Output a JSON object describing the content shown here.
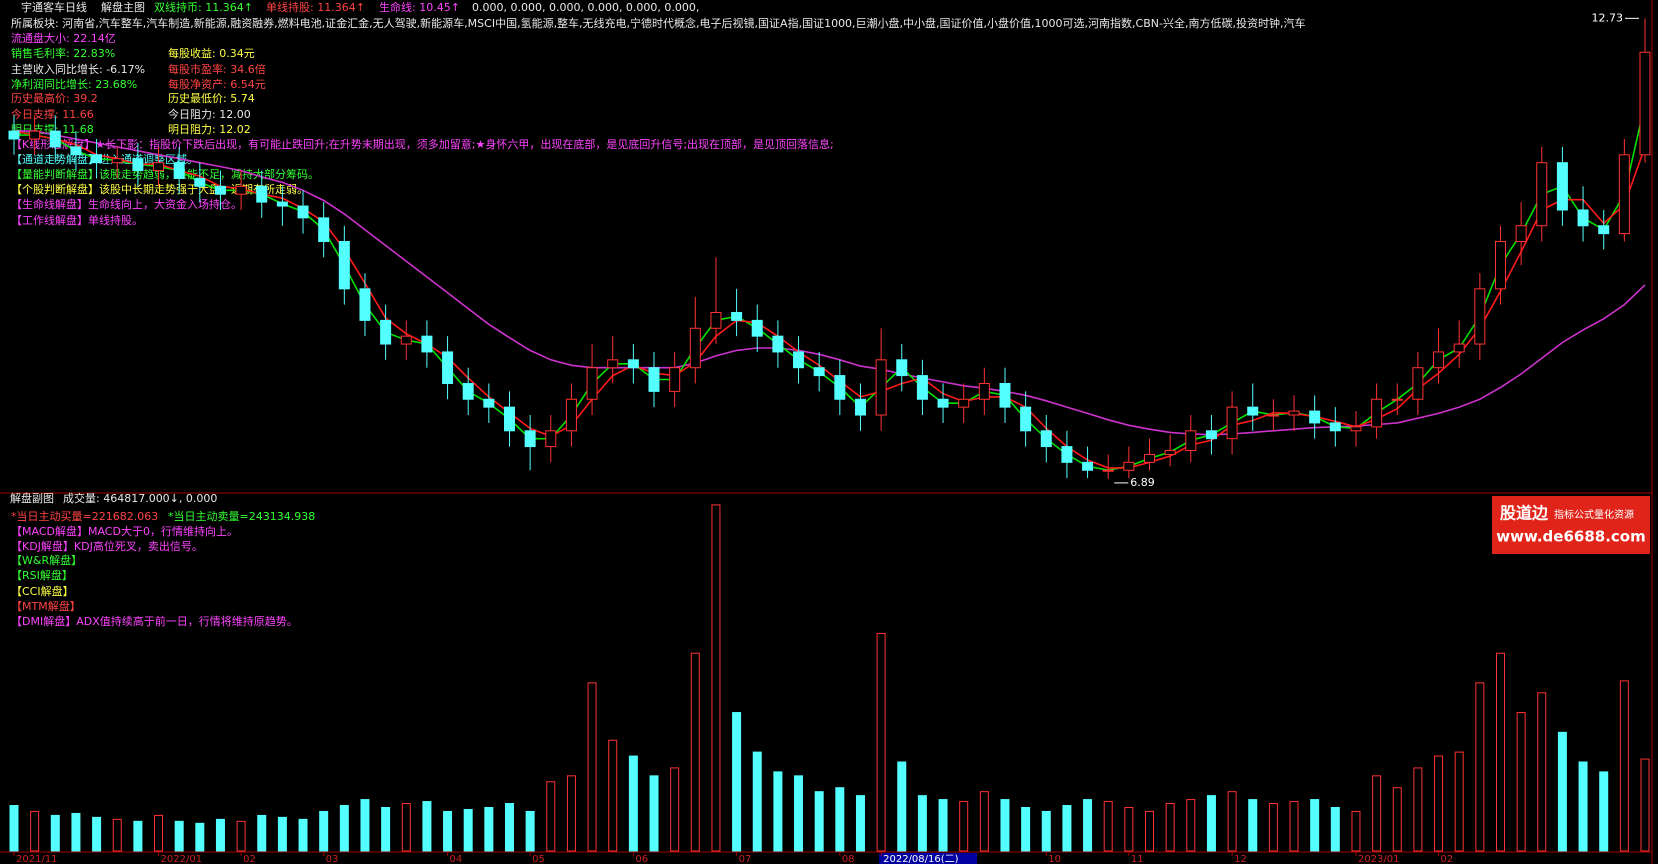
{
  "header": {
    "stock": "宇通客车日线",
    "main_title": "解盘主图",
    "items": [
      "双线持币: 11.364↑",
      "单线持股: 11.364↑",
      "生命线: 10.45↑",
      "0.000, 0.000, 0.000, 0.000, 0.000, 0.000,"
    ]
  },
  "info": {
    "sector": "所属板块: 河南省,汽车整车,汽车制造,新能源,融资融券,燃料电池,证金汇金,无人驾驶,新能源车,MSCI中国,氢能源,整车,无线充电,宁德时代概念,电子后视镜,国证A指,国证1000,巨潮小盘,中小盘,国证价值,小盘价值,1000可选,河南指数,CBN-兴全,南方低碳,投资时钟,汽车",
    "left": [
      "流通盘大小: 22.14亿",
      "销售毛利率: 22.83%",
      "主营收入同比增长: -6.17%",
      "净利润同比增长: 23.68%",
      "历史最高价: 39.2",
      "今日支撑: 11.66",
      "明日支撑: 11.68"
    ],
    "right": [
      "每股收益: 0.34元",
      "每股市盈率: 34.6倍",
      "每股净资产: 6.54元",
      "历史最低价: 5.74",
      "今日阻力: 12.00",
      "明日阻力: 12.02"
    ]
  },
  "signals": [
    "【K线形态解盘】★长下影：指股价下跌后出现，有可能止跌回升;在升势末期出现，须多加留意;★身怀六甲，出现在底部，是见底回升信号;出现在顶部，是见顶回落信息;",
    "【通道走势解盘】进入通道调整区域。",
    "【量能判断解盘】该股走势趋弱，量能不足，减持大部分筹码。",
    "【个股判断解盘】该股中长期走势强于大盘，近期有所走弱。",
    "【生命线解盘】生命线向上，大资金入场持仓。",
    "【工作线解盘】单线持股。"
  ],
  "sub_panel": {
    "title": "解盘副图",
    "volume": "成交量: 464817.000↓, 0.000",
    "lines": [
      "*当日主动买量=221682.063",
      "*当日主动卖量=243134.938",
      "【MACD解盘】MACD大于0，行情维持向上。",
      "【KDJ解盘】KDJ高位死叉，卖出信号。",
      "【W&R解盘】",
      "【RSI解盘】",
      "【CCI解盘】",
      "【MTM解盘】",
      "【DMI解盘】ADX值持续高于前一日，行情将维持原趋势。"
    ]
  },
  "logo": {
    "name": "股道边",
    "tagline": "指标公式量化资源",
    "url": "www.de6688.com"
  },
  "chart_data": [
    {
      "type": "candlestick",
      "up_color": "#ff3232",
      "down_color": "#54ffff",
      "ylim": [
        6.8,
        12.95
      ],
      "open": [
        11.3,
        11.2,
        11.3,
        11.1,
        11.0,
        10.9,
        10.95,
        10.8,
        10.9,
        10.7,
        10.6,
        10.5,
        10.6,
        10.4,
        10.35,
        10.2,
        9.9,
        9.3,
        8.9,
        8.6,
        8.7,
        8.5,
        8.1,
        7.9,
        7.8,
        7.5,
        7.3,
        7.5,
        7.9,
        8.3,
        8.4,
        8.3,
        8.0,
        8.3,
        8.8,
        9.0,
        8.9,
        8.7,
        8.5,
        8.3,
        8.2,
        7.9,
        7.7,
        8.4,
        8.2,
        7.9,
        7.8,
        7.9,
        8.1,
        7.8,
        7.5,
        7.3,
        7.1,
        7.0,
        7.0,
        7.1,
        7.2,
        7.25,
        7.5,
        7.4,
        7.8,
        7.7,
        7.7,
        7.75,
        7.6,
        7.5,
        7.55,
        7.9,
        7.9,
        8.3,
        8.5,
        8.6,
        9.3,
        9.9,
        10.1,
        10.9,
        10.3,
        10.1,
        10.0,
        11.0
      ],
      "high": [
        11.5,
        11.5,
        11.5,
        11.3,
        11.2,
        11.1,
        11.15,
        11.1,
        11.1,
        10.9,
        10.8,
        10.8,
        10.8,
        10.6,
        10.55,
        10.4,
        10.1,
        9.5,
        9.1,
        8.9,
        8.9,
        8.7,
        8.3,
        8.1,
        8.0,
        7.7,
        7.7,
        8.1,
        8.6,
        8.7,
        8.6,
        8.5,
        8.5,
        9.2,
        9.7,
        9.3,
        9.1,
        8.9,
        8.7,
        8.5,
        8.4,
        8.1,
        8.8,
        8.6,
        8.4,
        8.1,
        8.1,
        8.3,
        8.3,
        8.0,
        7.7,
        7.5,
        7.3,
        7.2,
        7.3,
        7.4,
        7.45,
        7.7,
        7.7,
        8.0,
        8.1,
        7.9,
        7.95,
        7.95,
        7.8,
        7.75,
        8.1,
        8.1,
        8.5,
        8.8,
        8.9,
        9.5,
        10.1,
        10.4,
        11.1,
        11.1,
        10.6,
        10.3,
        11.2,
        12.73
      ],
      "low": [
        11.0,
        11.0,
        10.9,
        10.8,
        10.7,
        10.7,
        10.6,
        10.6,
        10.5,
        10.4,
        10.3,
        10.3,
        10.2,
        10.1,
        10.0,
        9.7,
        9.1,
        8.7,
        8.4,
        8.4,
        8.3,
        7.9,
        7.7,
        7.6,
        7.3,
        7.0,
        7.1,
        7.3,
        7.7,
        8.1,
        8.1,
        7.8,
        7.8,
        8.1,
        8.6,
        8.7,
        8.5,
        8.3,
        8.1,
        8.0,
        7.7,
        7.5,
        7.5,
        8.0,
        7.7,
        7.6,
        7.6,
        7.7,
        7.6,
        7.3,
        7.1,
        6.9,
        6.9,
        6.89,
        6.9,
        7.0,
        7.05,
        7.1,
        7.2,
        7.2,
        7.5,
        7.5,
        7.5,
        7.4,
        7.3,
        7.3,
        7.4,
        7.7,
        7.7,
        8.1,
        8.3,
        8.4,
        9.1,
        9.6,
        9.9,
        10.1,
        9.9,
        9.8,
        9.9,
        10.9
      ],
      "close": [
        11.2,
        11.3,
        11.1,
        11.0,
        10.9,
        10.95,
        10.8,
        10.9,
        10.7,
        10.6,
        10.5,
        10.6,
        10.4,
        10.35,
        10.2,
        9.9,
        9.3,
        8.9,
        8.6,
        8.7,
        8.5,
        8.1,
        7.9,
        7.8,
        7.5,
        7.3,
        7.5,
        7.9,
        8.3,
        8.4,
        8.3,
        8.0,
        8.3,
        8.8,
        9.0,
        8.9,
        8.7,
        8.5,
        8.3,
        8.2,
        7.9,
        7.7,
        8.4,
        8.2,
        7.9,
        7.8,
        7.9,
        8.1,
        7.8,
        7.5,
        7.3,
        7.1,
        7.0,
        7.0,
        7.1,
        7.2,
        7.25,
        7.5,
        7.4,
        7.8,
        7.7,
        7.7,
        7.75,
        7.6,
        7.5,
        7.55,
        7.9,
        7.9,
        8.3,
        8.5,
        8.6,
        9.3,
        9.9,
        10.1,
        10.9,
        10.3,
        10.1,
        10.0,
        11.0,
        12.3
      ],
      "lines": [
        {
          "color": "#cc33cc",
          "values": [
            11.3,
            11.3,
            11.25,
            11.2,
            11.15,
            11.1,
            11.05,
            11.0,
            10.95,
            10.9,
            10.85,
            10.8,
            10.72,
            10.65,
            10.55,
            10.42,
            10.25,
            10.05,
            9.85,
            9.65,
            9.45,
            9.25,
            9.05,
            8.85,
            8.68,
            8.52,
            8.4,
            8.33,
            8.3,
            8.3,
            8.3,
            8.3,
            8.3,
            8.36,
            8.45,
            8.52,
            8.55,
            8.55,
            8.52,
            8.47,
            8.4,
            8.32,
            8.28,
            8.22,
            8.17,
            8.12,
            8.07,
            8.04,
            8.0,
            7.95,
            7.88,
            7.8,
            7.72,
            7.64,
            7.57,
            7.52,
            7.48,
            7.46,
            7.45,
            7.46,
            7.48,
            7.5,
            7.52,
            7.54,
            7.55,
            7.56,
            7.58,
            7.6,
            7.66,
            7.72,
            7.8,
            7.9,
            8.05,
            8.22,
            8.42,
            8.62,
            8.78,
            8.92,
            9.1,
            9.35
          ]
        },
        {
          "color": "#00e000",
          "values": [
            11.25,
            11.25,
            11.2,
            11.05,
            10.95,
            10.93,
            10.88,
            10.85,
            10.8,
            10.65,
            10.55,
            10.55,
            10.5,
            10.38,
            10.28,
            10.05,
            9.6,
            9.1,
            8.75,
            8.65,
            8.6,
            8.3,
            8.0,
            7.85,
            7.65,
            7.4,
            7.4,
            7.7,
            8.1,
            8.35,
            8.35,
            8.15,
            8.15,
            8.55,
            8.9,
            8.95,
            8.8,
            8.6,
            8.4,
            8.25,
            8.05,
            7.8,
            8.05,
            8.3,
            8.05,
            7.85,
            7.85,
            8.0,
            7.95,
            7.65,
            7.4,
            7.2,
            7.05,
            7.0,
            7.05,
            7.15,
            7.23,
            7.38,
            7.45,
            7.6,
            7.75,
            7.7,
            7.73,
            7.68,
            7.55,
            7.53,
            7.73,
            7.9,
            8.1,
            8.4,
            8.55,
            8.95,
            9.6,
            10.0,
            10.5,
            10.6,
            10.2,
            10.05,
            10.5,
            11.65
          ]
        },
        {
          "color": "#ff1a1a",
          "values": [
            11.3,
            11.25,
            11.2,
            11.13,
            11.0,
            10.95,
            10.88,
            10.88,
            10.8,
            10.73,
            10.6,
            10.57,
            10.5,
            10.45,
            10.32,
            10.15,
            9.8,
            9.37,
            8.93,
            8.73,
            8.6,
            8.43,
            8.17,
            7.93,
            7.73,
            7.53,
            7.43,
            7.57,
            7.9,
            8.2,
            8.33,
            8.23,
            8.2,
            8.37,
            8.7,
            8.9,
            8.87,
            8.7,
            8.5,
            8.33,
            8.13,
            7.93,
            8.0,
            8.1,
            8.17,
            7.97,
            7.87,
            7.93,
            7.93,
            7.8,
            7.53,
            7.3,
            7.13,
            7.03,
            7.03,
            7.1,
            7.18,
            7.32,
            7.38,
            7.57,
            7.63,
            7.73,
            7.72,
            7.68,
            7.62,
            7.55,
            7.65,
            7.78,
            8.03,
            8.23,
            8.47,
            8.8,
            9.27,
            9.77,
            10.3,
            10.43,
            10.43,
            10.13,
            10.37,
            11.1
          ]
        }
      ]
    },
    {
      "type": "bar",
      "ylim": [
        0,
        1800000
      ],
      "categories": [
        "2021/11",
        null,
        null,
        null,
        null,
        null,
        null,
        "2022/01",
        null,
        null,
        null,
        "02",
        null,
        null,
        null,
        "03",
        null,
        null,
        null,
        null,
        null,
        "04",
        null,
        null,
        null,
        "05",
        null,
        null,
        null,
        null,
        "06",
        null,
        null,
        null,
        null,
        "07",
        null,
        null,
        null,
        null,
        "08",
        null,
        "2022/08/16(二)",
        null,
        null,
        null,
        null,
        null,
        null,
        null,
        "10",
        null,
        null,
        null,
        "11",
        null,
        null,
        null,
        null,
        "12",
        null,
        null,
        null,
        null,
        null,
        "2023/01",
        null,
        null,
        null,
        "02",
        null,
        null,
        null,
        null,
        null,
        null,
        null,
        null,
        null,
        null
      ],
      "values": [
        230000,
        200000,
        180000,
        190000,
        170000,
        160000,
        150000,
        180000,
        150000,
        140000,
        160000,
        150000,
        180000,
        170000,
        160000,
        200000,
        230000,
        260000,
        220000,
        240000,
        250000,
        200000,
        210000,
        220000,
        240000,
        200000,
        350000,
        380000,
        850000,
        560000,
        480000,
        380000,
        420000,
        1000000,
        1750000,
        700000,
        500000,
        400000,
        380000,
        300000,
        320000,
        280000,
        1100000,
        450000,
        280000,
        260000,
        250000,
        300000,
        260000,
        220000,
        200000,
        230000,
        260000,
        250000,
        220000,
        200000,
        240000,
        260000,
        280000,
        300000,
        260000,
        240000,
        250000,
        260000,
        220000,
        200000,
        380000,
        320000,
        420000,
        480000,
        500000,
        850000,
        1000000,
        700000,
        800000,
        600000,
        450000,
        400000,
        860000,
        464817
      ]
    }
  ]
}
